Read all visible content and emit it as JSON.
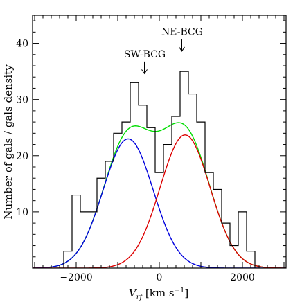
{
  "chart_data": {
    "type": "bar",
    "xlabel": "V_rf [km s⁻¹]",
    "xlabel_parts": {
      "main": "V",
      "sub": "rf",
      "rest": " [km s",
      "sup": "−1",
      "end": "]"
    },
    "ylabel": "Number of gals / gals density",
    "xlim": [
      -3050,
      3050
    ],
    "ylim": [
      0,
      45
    ],
    "x_ticks": [
      -2000,
      0,
      2000
    ],
    "x_tick_labels": [
      "−2000",
      "0",
      "2000"
    ],
    "y_ticks": [
      10,
      20,
      30,
      40
    ],
    "y_tick_labels": [
      "10",
      "20",
      "30",
      "40"
    ],
    "grid": false,
    "histogram": {
      "bin_width": 200,
      "bin_edges": [
        -2300,
        -2100,
        -1900,
        -1700,
        -1500,
        -1300,
        -1100,
        -900,
        -700,
        -500,
        -300,
        -100,
        100,
        300,
        500,
        700,
        900,
        1100,
        1300,
        1500,
        1700,
        1900,
        2100,
        2300
      ],
      "counts": [
        3,
        13,
        10,
        10,
        16,
        19,
        24,
        26,
        33,
        29,
        25,
        17,
        22,
        27,
        35,
        31,
        26,
        17,
        14,
        8,
        4,
        10,
        3
      ],
      "color": "#000000"
    },
    "series": [
      {
        "color": "#0000dd",
        "kind": "gaussian",
        "amplitude": 23,
        "mean": -750,
        "sigma": 600
      },
      {
        "color": "#dd0000",
        "kind": "gaussian",
        "amplitude": 23.7,
        "mean": 620,
        "sigma": 600
      },
      {
        "color": "#00dd00",
        "kind": "sum"
      }
    ],
    "annotations": [
      {
        "text": "SW-BCG",
        "x": -350,
        "y": 37.5,
        "arrow_to_y": 34.6
      },
      {
        "text": "NE-BCG",
        "x": 550,
        "y": 41.5,
        "arrow_to_y": 38.6
      }
    ]
  }
}
